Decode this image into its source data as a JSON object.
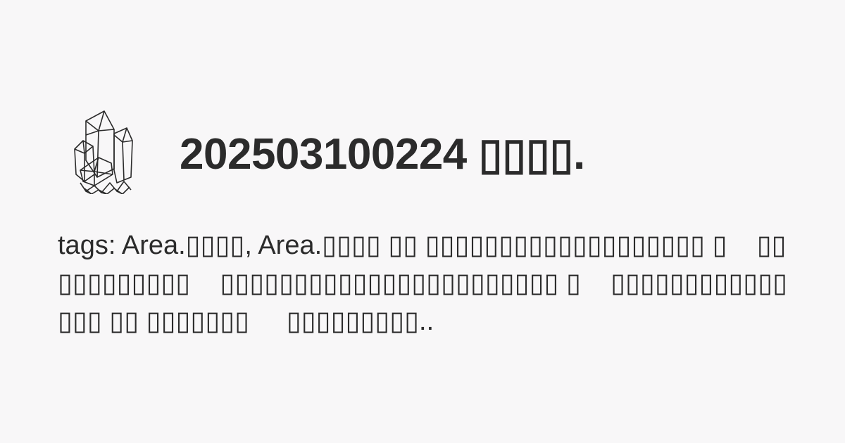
{
  "logo": {
    "icon": "crystal-cluster-icon"
  },
  "title": "202503100224 ▯▯▯▯.",
  "excerpt": "tags: Area.▯▯▯▯, Area.▯▯▯▯ ▯▯ ▯▯▯▯▯▯▯▯▯▯▯▯▯▯▯▯▯▯▯ ▯    ▯▯▯▯▯▯▯▯▯▯▯    ▯▯▯▯▯▯▯▯▯▯▯▯▯▯▯▯▯▯▯▯▯▯▯ ▯    ▯▯▯▯▯▯▯▯▯▯▯▯▯▯▯ ▯▯ ▯▯▯▯▯▯▯     ▯▯▯▯▯▯▯▯▯.."
}
